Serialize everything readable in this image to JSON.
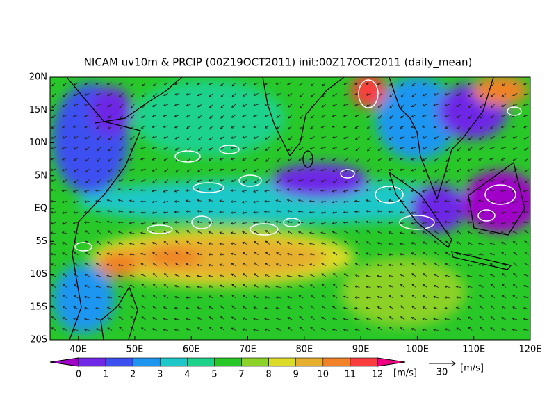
{
  "title": "NICAM uv10m & PRCIP (00Z19OCT2011) init:00Z17OCT2011 (daily_mean)",
  "map": {
    "lat_labels": [
      "20N",
      "15N",
      "10N",
      "5N",
      "EQ",
      "5S",
      "10S",
      "15S",
      "20S"
    ],
    "lon_labels": [
      "40E",
      "50E",
      "60E",
      "70E",
      "80E",
      "90E",
      "100E",
      "110E",
      "120E"
    ]
  },
  "colorbar": {
    "colors": [
      "#a000c8",
      "#6e28e6",
      "#3c50f0",
      "#1e96f0",
      "#1ec8c8",
      "#1ed28c",
      "#28c828",
      "#8cd228",
      "#dcdc28",
      "#e6af2d",
      "#f08228",
      "#fa3c3c",
      "#f00082"
    ],
    "labels": [
      0,
      1,
      2,
      3,
      4,
      5,
      7,
      8,
      9,
      10,
      11,
      12
    ],
    "unit": "[m/s]"
  },
  "vector_reference": {
    "value": "30",
    "unit": "[m/s]"
  }
}
